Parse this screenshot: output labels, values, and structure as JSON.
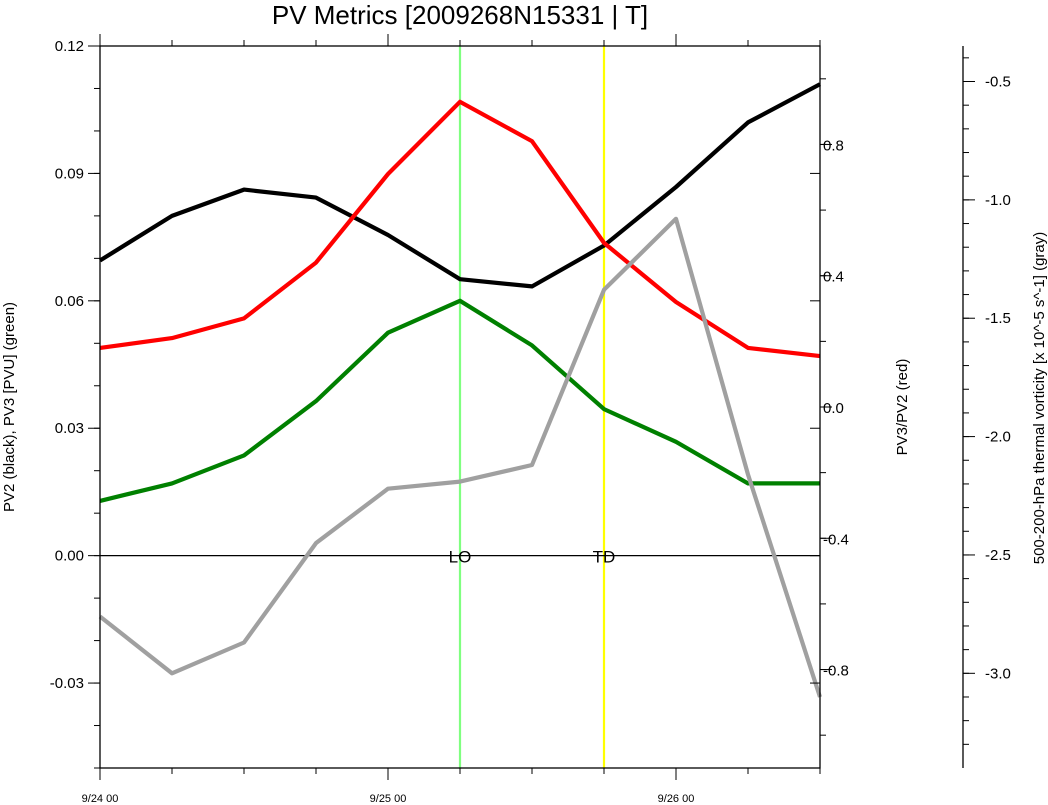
{
  "chart_data": {
    "type": "line",
    "title": "PV Metrics [2009268N15331 | T]",
    "x_ticks": [
      "9/24 00",
      "9/25 00",
      "9/26 00"
    ],
    "x": [
      "9/24 00",
      "9/24 06",
      "9/24 12",
      "9/24 18",
      "9/25 00",
      "9/25 06",
      "9/25 12",
      "9/25 18",
      "9/26 00",
      "9/26 06",
      "9/26 12"
    ],
    "axes": {
      "left": {
        "label": "PV2 (black), PV3 [PVU] (green)",
        "ylim": [
          -0.05,
          0.12
        ],
        "ticks": [
          "0.12",
          "0.09",
          "0.06",
          "0.03",
          "0.00",
          "-0.03"
        ]
      },
      "right": {
        "label": "PV3/PV2 (red)",
        "ylim": [
          -1.1,
          1.1
        ],
        "ticks": [
          "0.8",
          "0.4",
          "0.0",
          "-0.4",
          "-0.8"
        ]
      },
      "far_right": {
        "label": "500-200-hPa thermal vorticity [x 10^-5 s^-1] (gray)",
        "ylim": [
          -3.4,
          -0.35
        ],
        "ticks": [
          "-0.5",
          "-1.0",
          "-1.5",
          "-2.0",
          "-2.5",
          "-3.0"
        ]
      }
    },
    "series": [
      {
        "color": "#000000",
        "axis": "left",
        "values": [
          0.0695,
          0.08,
          0.0862,
          0.0843,
          0.0755,
          0.0651,
          0.0634,
          0.073,
          0.0868,
          0.102,
          0.111
        ]
      },
      {
        "color": "#008000",
        "axis": "left",
        "values": [
          0.0129,
          0.017,
          0.0236,
          0.0364,
          0.0525,
          0.06,
          0.0495,
          0.0345,
          0.0268,
          0.017,
          0.017
        ]
      },
      {
        "color": "#ff0000",
        "axis": "right",
        "values": [
          0.18,
          0.21,
          0.27,
          0.44,
          0.71,
          0.93,
          0.81,
          0.5,
          0.32,
          0.18,
          0.155
        ]
      },
      {
        "color": "#a0a0a0",
        "axis": "far_right",
        "values": [
          -2.76,
          -3.0,
          -2.87,
          -2.45,
          -2.22,
          -2.19,
          -2.12,
          -1.38,
          -1.08,
          -2.16,
          -3.1
        ]
      }
    ],
    "reference_lines": [
      {
        "label": "LO",
        "x": "9/25 06",
        "color": "#80ff80"
      },
      {
        "label": "TD",
        "x": "9/25 18",
        "color": "#ffff00"
      }
    ],
    "zero_line": {
      "axis": "left",
      "value": 0.0
    },
    "grid": false,
    "legend": "none"
  }
}
